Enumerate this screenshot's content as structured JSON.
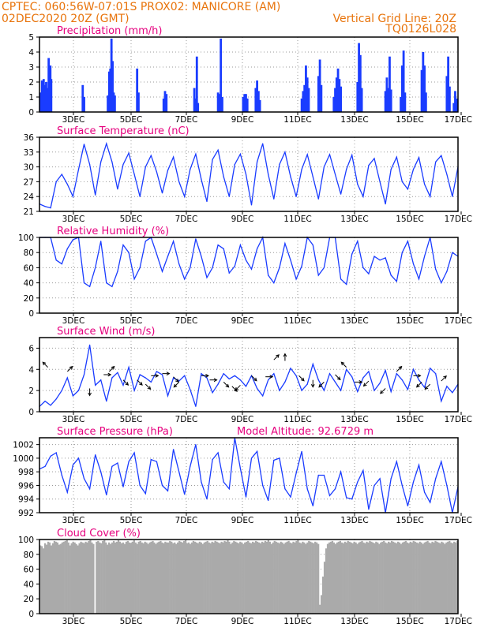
{
  "header": {
    "left1": "CPTEC:   060:56W-07:01S   PROX02: MANICORE (AM)",
    "left2": "02DEC2020 20Z (GMT)",
    "right1": "Vertical Grid Line: 20Z",
    "right2": "TQ0126L028"
  },
  "colors": {
    "header": "#e8740c",
    "title": "#e6007e",
    "series": "#1a3cff",
    "cloud": "#aaaaaa",
    "grid": "#999999"
  },
  "chart_data": [
    {
      "type": "bar",
      "title": "Precipitation (mm/h)",
      "xlim": [
        0,
        15
      ],
      "ylim": [
        0,
        5
      ],
      "yticks": [
        0,
        1,
        2,
        3,
        4,
        5
      ],
      "xticks": [
        "3DEC",
        "5DEC",
        "7DEC",
        "9DEC",
        "11DEC",
        "13DEC",
        "15DEC",
        "17DEC"
      ],
      "bars": [
        [
          0.05,
          1.3
        ],
        [
          0.09,
          2.1
        ],
        [
          0.12,
          1.0
        ],
        [
          0.15,
          2.2
        ],
        [
          0.18,
          1.8
        ],
        [
          0.21,
          1.6
        ],
        [
          0.24,
          2.0
        ],
        [
          0.27,
          1.6
        ],
        [
          0.3,
          1.4
        ],
        [
          0.33,
          3.6
        ],
        [
          0.36,
          2.6
        ],
        [
          0.39,
          3.1
        ],
        [
          0.42,
          2.2
        ],
        [
          1.55,
          1.8
        ],
        [
          1.6,
          1.0
        ],
        [
          2.45,
          1.1
        ],
        [
          2.5,
          2.7
        ],
        [
          2.54,
          2.9
        ],
        [
          2.58,
          4.9
        ],
        [
          2.62,
          3.4
        ],
        [
          2.66,
          1.3
        ],
        [
          2.7,
          1.1
        ],
        [
          3.5,
          2.9
        ],
        [
          3.55,
          1.3
        ],
        [
          4.45,
          0.9
        ],
        [
          4.5,
          1.4
        ],
        [
          4.55,
          1.2
        ],
        [
          5.55,
          1.6
        ],
        [
          5.6,
          0.9
        ],
        [
          5.64,
          3.7
        ],
        [
          5.68,
          0.6
        ],
        [
          6.4,
          1.3
        ],
        [
          6.45,
          1.2
        ],
        [
          6.5,
          4.9
        ],
        [
          6.55,
          1.0
        ],
        [
          7.3,
          1.0
        ],
        [
          7.35,
          1.2
        ],
        [
          7.4,
          1.2
        ],
        [
          7.45,
          0.9
        ],
        [
          7.75,
          1.6
        ],
        [
          7.8,
          2.1
        ],
        [
          7.85,
          1.4
        ],
        [
          7.9,
          0.8
        ],
        [
          9.4,
          0.9
        ],
        [
          9.45,
          1.4
        ],
        [
          9.5,
          1.8
        ],
        [
          9.55,
          3.1
        ],
        [
          9.6,
          2.3
        ],
        [
          9.65,
          1.6
        ],
        [
          10.0,
          2.4
        ],
        [
          10.05,
          3.5
        ],
        [
          10.1,
          1.8
        ],
        [
          10.55,
          1.0
        ],
        [
          10.6,
          1.6
        ],
        [
          10.65,
          2.3
        ],
        [
          10.7,
          2.9
        ],
        [
          10.75,
          2.2
        ],
        [
          10.8,
          1.7
        ],
        [
          11.4,
          2.0
        ],
        [
          11.45,
          4.6
        ],
        [
          11.5,
          3.8
        ],
        [
          11.55,
          1.6
        ],
        [
          12.4,
          1.4
        ],
        [
          12.45,
          2.3
        ],
        [
          12.5,
          1.6
        ],
        [
          12.55,
          3.7
        ],
        [
          12.6,
          1.5
        ],
        [
          12.95,
          1.0
        ],
        [
          13.0,
          3.1
        ],
        [
          13.05,
          4.1
        ],
        [
          13.1,
          1.3
        ],
        [
          13.7,
          2.8
        ],
        [
          13.75,
          4.0
        ],
        [
          13.8,
          3.1
        ],
        [
          13.85,
          1.3
        ],
        [
          14.6,
          2.4
        ],
        [
          14.65,
          3.7
        ],
        [
          14.7,
          1.7
        ],
        [
          14.85,
          0.6
        ],
        [
          14.9,
          1.4
        ],
        [
          14.95,
          0.9
        ]
      ]
    },
    {
      "type": "line",
      "title": "Surface Temperature (nC)",
      "xlim": [
        0,
        15
      ],
      "ylim": [
        21,
        36
      ],
      "yticks": [
        21,
        24,
        27,
        30,
        33,
        36
      ],
      "xticks": [
        "3DEC",
        "5DEC",
        "7DEC",
        "9DEC",
        "11DEC",
        "13DEC",
        "15DEC",
        "17DEC"
      ],
      "x": [
        0,
        0.2,
        0.4,
        0.6,
        0.8,
        1.0,
        1.2,
        1.4,
        1.6,
        1.8,
        2.0,
        2.2,
        2.4,
        2.6,
        2.8,
        3.0,
        3.2,
        3.4,
        3.6,
        3.8,
        4.0,
        4.2,
        4.4,
        4.6,
        4.8,
        5.0,
        5.2,
        5.4,
        5.6,
        5.8,
        6.0,
        6.2,
        6.4,
        6.6,
        6.8,
        7.0,
        7.2,
        7.4,
        7.6,
        7.8,
        8.0,
        8.2,
        8.4,
        8.6,
        8.8,
        9.0,
        9.2,
        9.4,
        9.6,
        9.8,
        10.0,
        10.2,
        10.4,
        10.6,
        10.8,
        11.0,
        11.2,
        11.4,
        11.6,
        11.8,
        12.0,
        12.2,
        12.4,
        12.6,
        12.8,
        13.0,
        13.2,
        13.4,
        13.6,
        13.8,
        14.0,
        14.2,
        14.4,
        14.6,
        14.8,
        15.0
      ],
      "values": [
        22.5,
        22.0,
        21.7,
        27.0,
        28.5,
        26.5,
        24.0,
        29.5,
        34.6,
        30.5,
        24.3,
        31.0,
        34.7,
        31.0,
        25.5,
        30.5,
        32.8,
        28.5,
        24.0,
        30.0,
        32.3,
        29.0,
        24.7,
        29.3,
        32.0,
        27.0,
        24.0,
        29.5,
        32.6,
        27.5,
        23.0,
        31.5,
        33.4,
        28.0,
        24.0,
        30.5,
        32.6,
        28.5,
        22.3,
        31.0,
        34.7,
        28.5,
        23.5,
        30.5,
        33.0,
        28.0,
        24.0,
        29.5,
        32.5,
        28.0,
        23.5,
        30.0,
        32.5,
        28.5,
        24.5,
        29.5,
        32.4,
        26.5,
        24.0,
        30.3,
        31.7,
        27.0,
        22.5,
        29.5,
        32.0,
        27.0,
        25.5,
        29.5,
        31.9,
        26.5,
        24.0,
        31.0,
        32.3,
        28.5,
        24.0,
        30.0
      ]
    },
    {
      "type": "line",
      "title": "Relative Humidity (%)",
      "xlim": [
        0,
        15
      ],
      "ylim": [
        0,
        100
      ],
      "yticks": [
        0,
        20,
        40,
        60,
        80,
        100
      ],
      "xticks": [
        "3DEC",
        "5DEC",
        "7DEC",
        "9DEC",
        "11DEC",
        "13DEC",
        "15DEC",
        "17DEC"
      ],
      "x": [
        0,
        0.2,
        0.4,
        0.6,
        0.8,
        1.0,
        1.2,
        1.4,
        1.6,
        1.8,
        2.0,
        2.2,
        2.4,
        2.6,
        2.8,
        3.0,
        3.2,
        3.4,
        3.6,
        3.8,
        4.0,
        4.2,
        4.4,
        4.6,
        4.8,
        5.0,
        5.2,
        5.4,
        5.6,
        5.8,
        6.0,
        6.2,
        6.4,
        6.6,
        6.8,
        7.0,
        7.2,
        7.4,
        7.6,
        7.8,
        8.0,
        8.2,
        8.4,
        8.6,
        8.8,
        9.0,
        9.2,
        9.4,
        9.6,
        9.8,
        10.0,
        10.2,
        10.4,
        10.6,
        10.8,
        11.0,
        11.2,
        11.4,
        11.6,
        11.8,
        12.0,
        12.2,
        12.4,
        12.6,
        12.8,
        13.0,
        13.2,
        13.4,
        13.6,
        13.8,
        14.0,
        14.2,
        14.4,
        14.6,
        14.8,
        15.0
      ],
      "values": [
        100,
        100,
        100,
        70,
        65,
        85,
        97,
        100,
        40,
        35,
        60,
        95,
        40,
        35,
        55,
        90,
        80,
        45,
        60,
        95,
        100,
        78,
        55,
        75,
        95,
        65,
        45,
        60,
        98,
        75,
        47,
        60,
        90,
        85,
        53,
        62,
        90,
        70,
        58,
        85,
        100,
        50,
        40,
        60,
        92,
        70,
        45,
        62,
        100,
        90,
        50,
        60,
        100,
        100,
        45,
        38,
        78,
        95,
        60,
        52,
        75,
        70,
        73,
        50,
        42,
        80,
        95,
        65,
        45,
        75,
        100,
        58,
        40,
        55,
        80,
        75
      ]
    },
    {
      "type": "line",
      "title": "Surface Wind (m/s)",
      "xlim": [
        0,
        15
      ],
      "ylim": [
        0,
        7
      ],
      "yticks": [
        0,
        2,
        4,
        6
      ],
      "xticks": [
        "3DEC",
        "5DEC",
        "7DEC",
        "9DEC",
        "11DEC",
        "13DEC",
        "15DEC",
        "17DEC"
      ],
      "x": [
        0,
        0.2,
        0.4,
        0.6,
        0.8,
        1.0,
        1.2,
        1.4,
        1.6,
        1.8,
        2.0,
        2.2,
        2.4,
        2.6,
        2.8,
        3.0,
        3.2,
        3.4,
        3.6,
        3.8,
        4.0,
        4.2,
        4.4,
        4.6,
        4.8,
        5.0,
        5.2,
        5.4,
        5.6,
        5.8,
        6.0,
        6.2,
        6.4,
        6.6,
        6.8,
        7.0,
        7.2,
        7.4,
        7.6,
        7.8,
        8.0,
        8.2,
        8.4,
        8.6,
        8.8,
        9.0,
        9.2,
        9.4,
        9.6,
        9.8,
        10.0,
        10.2,
        10.4,
        10.6,
        10.8,
        11.0,
        11.2,
        11.4,
        11.6,
        11.8,
        12.0,
        12.2,
        12.4,
        12.6,
        12.8,
        13.0,
        13.2,
        13.4,
        13.6,
        13.8,
        14.0,
        14.2,
        14.4,
        14.6,
        14.8,
        15.0
      ],
      "values": [
        0.5,
        1.0,
        0.6,
        1.2,
        2.0,
        3.2,
        1.5,
        2.0,
        3.5,
        6.3,
        2.5,
        3.0,
        1.0,
        3.2,
        3.7,
        2.5,
        4.2,
        2.0,
        3.5,
        3.2,
        2.8,
        3.8,
        3.5,
        1.5,
        3.2,
        2.9,
        3.4,
        2.1,
        0.5,
        3.6,
        3.2,
        1.8,
        2.6,
        3.6,
        3.1,
        3.4,
        3.0,
        2.4,
        3.4,
        2.2,
        1.5,
        3.0,
        3.6,
        2.0,
        2.8,
        4.1,
        3.4,
        2.0,
        2.6,
        4.5,
        3.0,
        2.0,
        3.6,
        2.8,
        2.0,
        4.0,
        3.3,
        1.9,
        3.2,
        3.8,
        2.0,
        2.7,
        3.9,
        1.9,
        3.6,
        3.0,
        2.1,
        4.0,
        3.0,
        2.3,
        4.1,
        3.6,
        1.0,
        2.4,
        1.8,
        2.6
      ]
    },
    {
      "type": "line",
      "title": "Surface Pressure (hPa)",
      "annotation": "Model Altitude: 92.6729 m",
      "xlim": [
        0,
        15
      ],
      "ylim": [
        992,
        1003
      ],
      "yticks": [
        992,
        994,
        996,
        998,
        1000,
        1002
      ],
      "xticks": [
        "3DEC",
        "5DEC",
        "7DEC",
        "9DEC",
        "11DEC",
        "13DEC",
        "15DEC",
        "17DEC"
      ],
      "x": [
        0,
        0.2,
        0.4,
        0.6,
        0.8,
        1.0,
        1.2,
        1.4,
        1.6,
        1.8,
        2.0,
        2.2,
        2.4,
        2.6,
        2.8,
        3.0,
        3.2,
        3.4,
        3.6,
        3.8,
        4.0,
        4.2,
        4.4,
        4.6,
        4.8,
        5.0,
        5.2,
        5.4,
        5.6,
        5.8,
        6.0,
        6.2,
        6.4,
        6.6,
        6.8,
        7.0,
        7.2,
        7.4,
        7.6,
        7.8,
        8.0,
        8.2,
        8.4,
        8.6,
        8.8,
        9.0,
        9.2,
        9.4,
        9.6,
        9.8,
        10.0,
        10.2,
        10.4,
        10.6,
        10.8,
        11.0,
        11.2,
        11.4,
        11.6,
        11.8,
        12.0,
        12.2,
        12.4,
        12.6,
        12.8,
        13.0,
        13.2,
        13.4,
        13.6,
        13.8,
        14.0,
        14.2,
        14.4,
        14.6,
        14.8,
        15.0
      ],
      "values": [
        998.4,
        998.8,
        1000.3,
        1000.8,
        997.5,
        995.0,
        999.0,
        1000.0,
        997.0,
        995.5,
        1000.5,
        998.0,
        994.6,
        998.8,
        999.3,
        995.8,
        999.5,
        1000.8,
        996.0,
        994.8,
        999.8,
        999.5,
        996.0,
        995.2,
        1001.3,
        998.0,
        994.7,
        998.8,
        1002.0,
        996.5,
        994.0,
        999.8,
        1000.8,
        996.5,
        995.5,
        1003.0,
        998.5,
        994.3,
        1000.0,
        1001.0,
        996.0,
        993.8,
        999.7,
        1000.0,
        995.5,
        994.3,
        997.8,
        1001.0,
        995.5,
        993.0,
        997.5,
        997.5,
        994.5,
        995.5,
        998.0,
        994.2,
        994.0,
        996.5,
        998.2,
        992.5,
        996.0,
        997.0,
        992.0,
        997.0,
        999.5,
        996.0,
        993.0,
        996.5,
        999.0,
        995.0,
        993.5,
        997.0,
        999.5,
        996.0,
        992.0,
        995.8
      ]
    },
    {
      "type": "bar",
      "title": "Cloud Cover (%)",
      "xlim": [
        0,
        15
      ],
      "ylim": [
        0,
        100
      ],
      "yticks": [
        0,
        20,
        40,
        60,
        80,
        100
      ],
      "xticks": [
        "3DEC",
        "5DEC",
        "7DEC",
        "9DEC",
        "11DEC",
        "13DEC",
        "15DEC",
        "17DEC"
      ],
      "values": [
        92,
        91,
        88,
        95,
        93,
        97,
        96,
        92,
        95,
        98,
        97,
        96,
        93,
        94,
        96,
        97,
        98,
        99,
        96,
        92,
        95,
        97,
        96,
        94,
        92,
        95,
        97,
        96,
        95,
        97,
        96,
        98,
        99,
        96,
        94,
        0,
        97,
        98,
        96,
        95,
        98,
        99,
        96,
        93,
        96,
        94,
        96,
        98,
        96,
        97,
        99,
        97,
        95,
        96,
        94,
        97,
        98,
        96,
        95,
        97,
        99,
        96,
        94,
        97,
        98,
        96,
        95,
        97,
        96,
        94,
        96,
        97,
        98,
        96,
        94,
        96,
        97,
        98,
        96,
        95,
        97,
        96,
        96,
        98,
        97,
        95,
        96,
        94,
        96,
        98,
        97,
        96,
        98,
        99,
        95,
        96,
        94,
        96,
        98,
        97,
        96,
        95,
        97,
        96,
        94,
        96,
        97,
        98,
        96,
        95,
        97,
        96,
        98,
        97,
        96,
        95,
        97,
        96,
        98,
        97,
        99,
        97,
        94,
        96,
        98,
        97,
        96,
        95,
        97,
        96,
        94,
        96,
        97,
        98,
        96,
        95,
        97,
        96,
        98,
        97,
        96,
        95,
        97,
        96,
        98,
        97,
        99,
        97,
        94,
        96,
        98,
        97,
        96,
        95,
        97,
        96,
        94,
        96,
        97,
        98,
        96,
        95,
        97,
        96,
        98,
        99,
        96,
        95,
        97,
        96,
        94,
        96,
        98,
        97,
        96,
        95,
        97,
        96,
        94,
        12,
        25,
        50,
        70,
        88,
        94,
        96,
        97,
        98,
        96,
        94,
        96,
        97,
        98,
        96,
        95,
        97,
        96,
        98,
        97,
        96,
        95,
        97,
        96,
        94,
        96,
        97,
        98,
        96,
        95,
        97,
        96,
        98,
        97,
        96,
        95,
        97,
        96,
        94,
        96,
        97,
        98,
        96,
        95,
        97,
        96,
        98,
        97,
        96,
        95,
        97,
        96,
        94,
        96,
        97,
        98,
        96,
        95,
        97,
        96,
        98,
        97,
        96,
        95,
        97,
        96,
        94,
        96,
        97,
        98,
        96,
        95,
        97,
        96,
        98,
        97,
        96,
        95,
        97,
        96,
        94,
        96,
        97,
        98,
        96,
        95,
        97,
        96,
        98
      ]
    }
  ]
}
